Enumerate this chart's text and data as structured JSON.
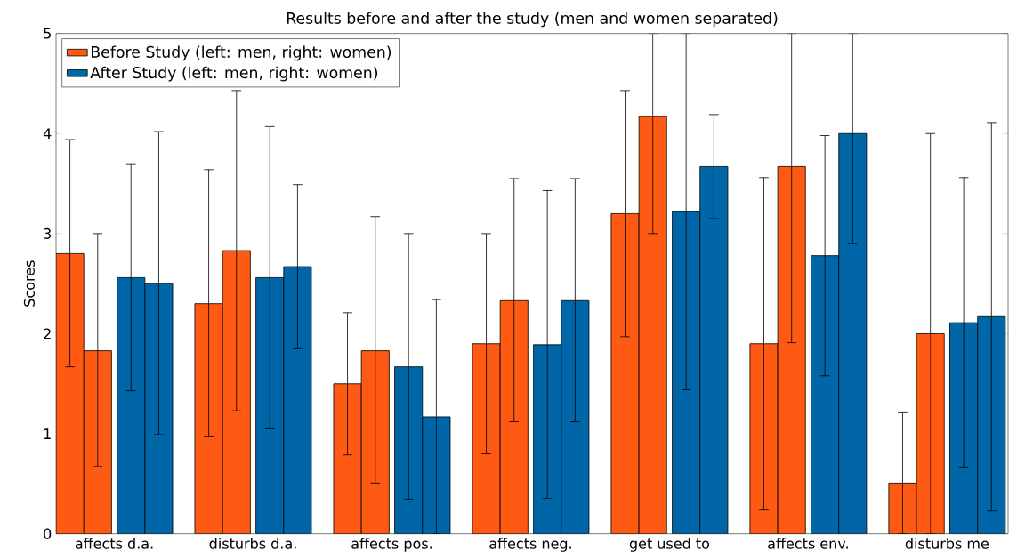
{
  "chart_data": {
    "type": "bar",
    "title": "Results before and after the study (men and women separated)",
    "ylabel": "Scores",
    "categories": [
      "affects d.a.",
      "disturbs d.a.",
      "affects pos.",
      "affects neg.",
      "get used to",
      "affects env.",
      "disturbs me"
    ],
    "series": [
      {
        "name": "Before Study (left: men, right: women)",
        "color": "#ff5a14",
        "values": [
          2.8,
          2.3,
          1.5,
          1.9,
          3.2,
          1.9,
          0.5
        ],
        "errors": [
          [
            1.67,
            3.94
          ],
          [
            0.97,
            3.64
          ],
          [
            0.79,
            2.21
          ],
          [
            0.8,
            3.0
          ],
          [
            1.97,
            4.43
          ],
          [
            0.24,
            3.56
          ],
          [
            0,
            1.21
          ]
        ]
      },
      {
        "color": "#ff5a14",
        "values": [
          1.83,
          2.83,
          1.83,
          2.33,
          4.17,
          3.67,
          2.0
        ],
        "errors": [
          [
            0.67,
            3.0
          ],
          [
            1.23,
            4.43
          ],
          [
            0.5,
            3.17
          ],
          [
            1.12,
            3.55
          ],
          [
            3.0,
            5
          ],
          [
            1.91,
            5
          ],
          [
            0,
            4.0
          ]
        ]
      },
      {
        "name": "After Study (left: men, right: women)",
        "color": "#0066a8",
        "values": [
          2.56,
          2.56,
          1.67,
          1.89,
          3.22,
          2.78,
          2.11
        ],
        "errors": [
          [
            1.43,
            3.69
          ],
          [
            1.05,
            4.07
          ],
          [
            0.34,
            3.0
          ],
          [
            0.35,
            3.43
          ],
          [
            1.44,
            5
          ],
          [
            1.58,
            3.98
          ],
          [
            0.66,
            3.56
          ]
        ]
      },
      {
        "color": "#0066a8",
        "values": [
          2.5,
          2.67,
          1.17,
          2.33,
          3.67,
          4.0,
          2.17
        ],
        "errors": [
          [
            0.99,
            4.02
          ],
          [
            1.85,
            3.49
          ],
          [
            0,
            2.34
          ],
          [
            1.12,
            3.55
          ],
          [
            3.15,
            4.19
          ],
          [
            2.9,
            5
          ],
          [
            0.23,
            4.11
          ]
        ]
      }
    ],
    "ylim": [
      0,
      5
    ],
    "yticks": [
      0,
      1,
      2,
      3,
      4,
      5
    ],
    "legend": "top left"
  }
}
